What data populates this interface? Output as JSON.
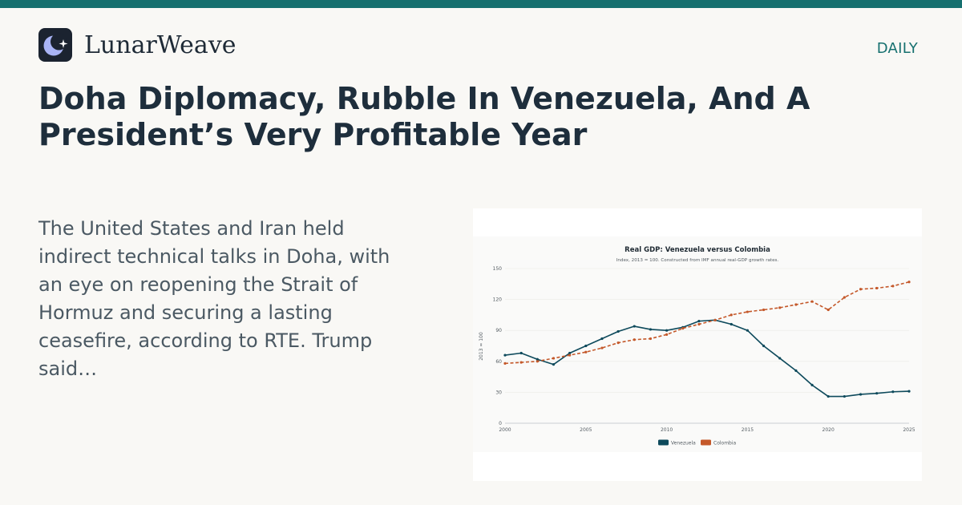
{
  "brand": {
    "name": "LunarWeave",
    "logo_icon": "crescent-moon-star-icon"
  },
  "section_label": "DAILY",
  "headline": "Doha Diplomacy, Rubble In Venezuela, And A President’s Very Profitable Year",
  "summary": "The United States and Iran held indirect technical talks in Doha, with an eye on reopening the Strait of Hormuz and securing a lasting ceasefire, according to RTE. Trump said…",
  "colors": {
    "accent": "#16706f",
    "venezuela": "#0e4a5c",
    "colombia": "#c4582a"
  },
  "chart_data": {
    "type": "line",
    "title": "Real GDP: Venezuela versus Colombia",
    "subtitle": "Index, 2013 = 100. Constructed from IMF annual real-GDP growth rates.",
    "xlabel": "",
    "ylabel": "2013 = 100",
    "xlim": [
      2000,
      2025
    ],
    "ylim": [
      0,
      150
    ],
    "x_ticks": [
      "2000",
      "2005",
      "2010",
      "2015",
      "2020",
      "2025"
    ],
    "y_ticks": [
      "0",
      "30",
      "60",
      "90",
      "120",
      "150"
    ],
    "grid": true,
    "legend_position": "bottom-center",
    "x": [
      2000,
      2001,
      2002,
      2003,
      2004,
      2005,
      2006,
      2007,
      2008,
      2009,
      2010,
      2011,
      2012,
      2013,
      2014,
      2015,
      2016,
      2017,
      2018,
      2019,
      2020,
      2021,
      2022,
      2023,
      2024,
      2025
    ],
    "series": [
      {
        "name": "Venezuela",
        "color": "#0e4a5c",
        "style": "solid",
        "values": [
          66,
          68,
          62,
          57,
          68,
          75,
          82,
          89,
          94,
          91,
          90,
          93,
          99,
          100,
          96,
          90,
          75,
          63,
          51,
          37,
          26,
          26,
          28,
          29,
          30.5,
          31
        ]
      },
      {
        "name": "Colombia",
        "color": "#c4582a",
        "style": "dashed",
        "values": [
          58,
          59,
          60,
          63,
          66,
          69,
          73,
          78,
          81,
          82,
          86,
          92,
          96,
          100,
          105,
          108,
          110,
          112,
          115,
          118,
          110,
          122,
          130,
          131,
          133,
          137
        ]
      }
    ]
  }
}
